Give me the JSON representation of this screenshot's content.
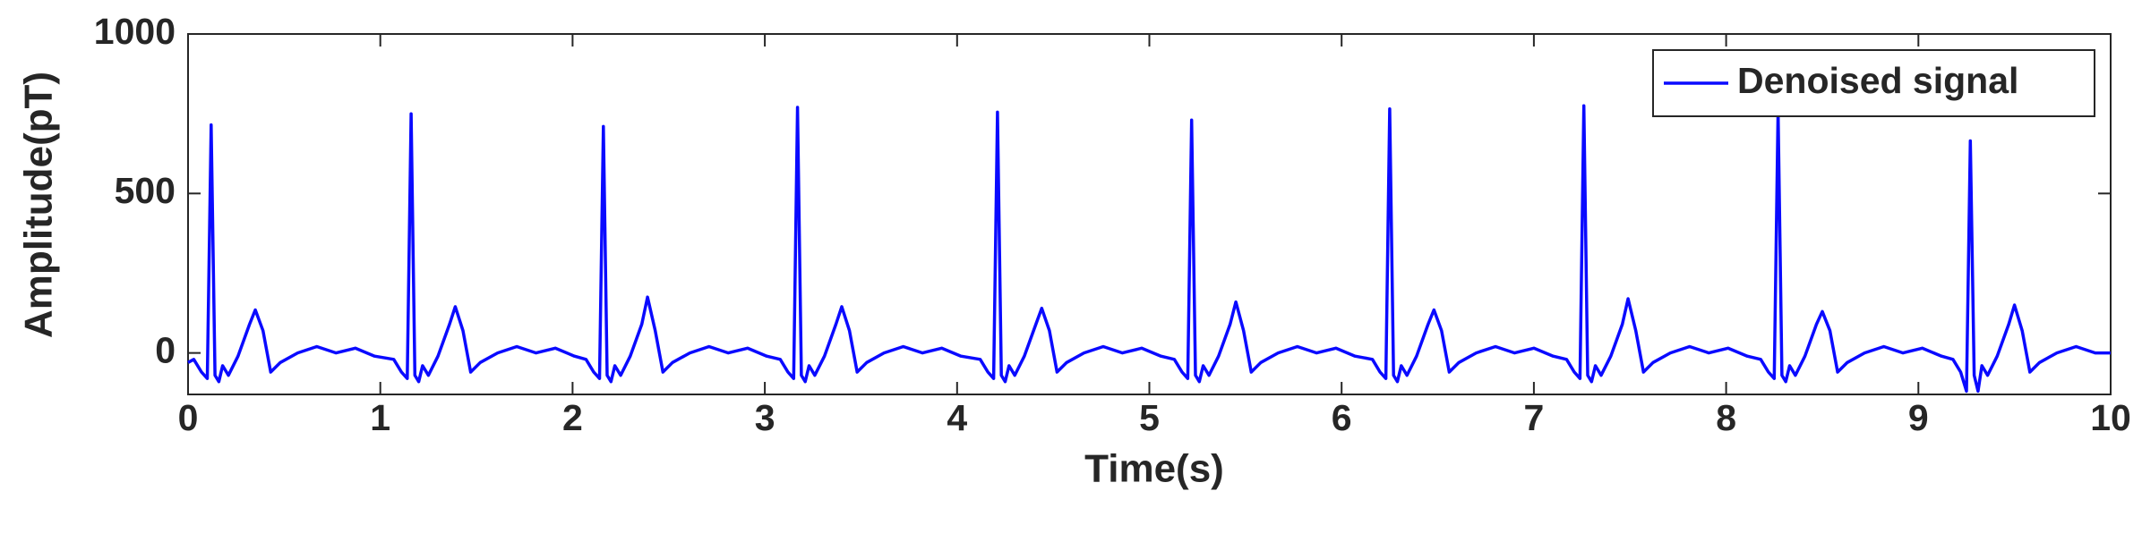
{
  "chart_data": {
    "type": "line",
    "xlabel": "Time(s)",
    "ylabel": "Amplitude(pT)",
    "x": [
      0,
      0.03,
      0.07,
      0.1,
      0.12,
      0.14,
      0.16,
      0.18,
      0.21,
      0.26,
      0.32,
      0.35,
      0.39,
      0.43,
      0.48,
      0.57,
      0.67,
      0.77,
      0.87,
      0.97,
      1.07,
      1.11,
      1.14,
      1.16,
      1.18,
      1.2,
      1.22,
      1.25,
      1.3,
      1.36,
      1.39,
      1.43,
      1.47,
      1.52,
      1.61,
      1.71,
      1.81,
      1.91,
      2.01,
      2.07,
      2.11,
      2.14,
      2.16,
      2.18,
      2.2,
      2.22,
      2.25,
      2.3,
      2.36,
      2.39,
      2.43,
      2.47,
      2.52,
      2.61,
      2.71,
      2.81,
      2.91,
      3.01,
      3.08,
      3.12,
      3.15,
      3.17,
      3.19,
      3.21,
      3.23,
      3.26,
      3.31,
      3.37,
      3.4,
      3.44,
      3.48,
      3.53,
      3.62,
      3.72,
      3.82,
      3.92,
      4.02,
      4.12,
      4.16,
      4.19,
      4.21,
      4.23,
      4.25,
      4.27,
      4.3,
      4.35,
      4.41,
      4.44,
      4.48,
      4.52,
      4.57,
      4.66,
      4.76,
      4.86,
      4.96,
      5.06,
      5.13,
      5.17,
      5.2,
      5.22,
      5.24,
      5.26,
      5.28,
      5.31,
      5.36,
      5.42,
      5.45,
      5.49,
      5.53,
      5.58,
      5.67,
      5.77,
      5.87,
      5.97,
      6.07,
      6.16,
      6.2,
      6.23,
      6.25,
      6.27,
      6.29,
      6.31,
      6.34,
      6.39,
      6.45,
      6.48,
      6.52,
      6.56,
      6.61,
      6.7,
      6.8,
      6.9,
      7.0,
      7.1,
      7.17,
      7.21,
      7.24,
      7.26,
      7.28,
      7.3,
      7.32,
      7.35,
      7.4,
      7.46,
      7.49,
      7.53,
      7.57,
      7.62,
      7.71,
      7.81,
      7.91,
      8.01,
      8.11,
      8.18,
      8.22,
      8.25,
      8.27,
      8.29,
      8.31,
      8.33,
      8.36,
      8.41,
      8.47,
      8.5,
      8.54,
      8.58,
      8.63,
      8.72,
      8.82,
      8.92,
      9.02,
      9.12,
      9.18,
      9.22,
      9.25,
      9.27,
      9.29,
      9.31,
      9.33,
      9.36,
      9.41,
      9.47,
      9.5,
      9.54,
      9.58,
      9.63,
      9.72,
      9.82,
      9.92,
      10
    ],
    "series": [
      {
        "name": "Denoised signal",
        "color": "#0a0aff",
        "values": [
          -30,
          -20,
          -60,
          -80,
          715,
          -70,
          -90,
          -40,
          -70,
          -10,
          90,
          135,
          70,
          -60,
          -30,
          0,
          20,
          0,
          15,
          -10,
          -20,
          -60,
          -80,
          750,
          -70,
          -90,
          -40,
          -70,
          -10,
          90,
          145,
          70,
          -60,
          -30,
          0,
          20,
          0,
          15,
          -10,
          -20,
          -60,
          -80,
          710,
          -70,
          -90,
          -40,
          -70,
          -10,
          90,
          175,
          70,
          -60,
          -30,
          0,
          20,
          0,
          15,
          -10,
          -20,
          -60,
          -80,
          770,
          -70,
          -90,
          -40,
          -70,
          -10,
          90,
          145,
          70,
          -60,
          -30,
          0,
          20,
          0,
          15,
          -10,
          -20,
          -60,
          -80,
          755,
          -70,
          -90,
          -40,
          -70,
          -10,
          90,
          140,
          70,
          -60,
          -30,
          0,
          20,
          0,
          15,
          -10,
          -20,
          -60,
          -80,
          730,
          -70,
          -90,
          -40,
          -70,
          -10,
          90,
          160,
          70,
          -60,
          -30,
          0,
          20,
          0,
          15,
          -10,
          -20,
          -60,
          -80,
          765,
          -70,
          -90,
          -40,
          -70,
          -10,
          90,
          135,
          70,
          -60,
          -30,
          0,
          20,
          0,
          15,
          -10,
          -20,
          -60,
          -80,
          775,
          -70,
          -90,
          -40,
          -70,
          -10,
          90,
          170,
          70,
          -60,
          -30,
          0,
          20,
          0,
          15,
          -10,
          -20,
          -60,
          -80,
          760,
          -70,
          -90,
          -40,
          -70,
          -10,
          90,
          130,
          70,
          -60,
          -30,
          0,
          20,
          0,
          15,
          -10,
          -20,
          -60,
          -120,
          665,
          -70,
          -120,
          -40,
          -70,
          -10,
          90,
          150,
          70,
          -60,
          -30,
          0,
          20,
          0,
          0
        ]
      }
    ],
    "xlim": [
      0,
      10
    ],
    "ylim": [
      -130,
      1000
    ],
    "xticks": [
      0,
      1,
      2,
      3,
      4,
      5,
      6,
      7,
      8,
      9,
      10
    ],
    "yticks": [
      0,
      500,
      1000
    ],
    "grid": false,
    "legend": "upper right"
  }
}
